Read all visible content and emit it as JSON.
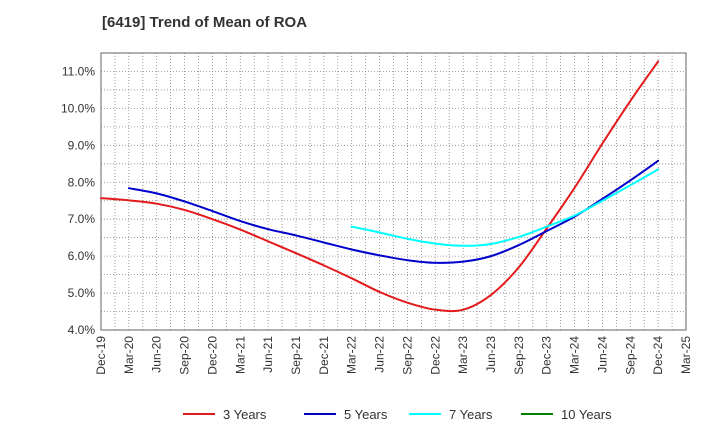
{
  "chart_data": {
    "type": "line",
    "title": "[6419]  Trend of Mean of ROA",
    "xlabel": "",
    "ylabel": "",
    "ylim": [
      4.0,
      11.5
    ],
    "y_ticks": [
      "4.0%",
      "5.0%",
      "6.0%",
      "7.0%",
      "8.0%",
      "9.0%",
      "10.0%",
      "11.0%"
    ],
    "x_ticks": [
      "Dec-19",
      "Mar-20",
      "Jun-20",
      "Sep-20",
      "Dec-20",
      "Mar-21",
      "Jun-21",
      "Sep-21",
      "Dec-21",
      "Mar-22",
      "Jun-22",
      "Sep-22",
      "Dec-22",
      "Mar-23",
      "Jun-23",
      "Sep-23",
      "Dec-23",
      "Mar-24",
      "Jun-24",
      "Sep-24",
      "Dec-24",
      "Mar-25"
    ],
    "grid": true,
    "legend_position": "bottom",
    "series": [
      {
        "name": "3 Years",
        "color": "#e31a1c",
        "start_index": 0,
        "values": [
          7.57,
          7.51,
          7.42,
          7.25,
          7.0,
          6.72,
          6.4,
          6.08,
          5.75,
          5.4,
          5.03,
          4.74,
          4.55,
          4.55,
          4.95,
          5.7,
          6.75,
          7.85,
          9.05,
          10.2,
          11.27
        ]
      },
      {
        "name": "5 Years",
        "color": "#0000cc",
        "start_index": 1,
        "values": [
          7.84,
          7.7,
          7.48,
          7.22,
          6.95,
          6.73,
          6.56,
          6.37,
          6.18,
          6.02,
          5.89,
          5.82,
          5.85,
          6.0,
          6.3,
          6.68,
          7.07,
          7.55,
          8.05,
          8.58
        ]
      },
      {
        "name": "7 Years",
        "color": "#00ffff",
        "start_index": 9,
        "values": [
          6.8,
          6.64,
          6.47,
          6.34,
          6.28,
          6.33,
          6.52,
          6.8,
          7.1,
          7.5,
          7.92,
          8.35
        ]
      },
      {
        "name": "10 Years",
        "color": "#008000",
        "start_index": 0,
        "values": []
      }
    ]
  }
}
